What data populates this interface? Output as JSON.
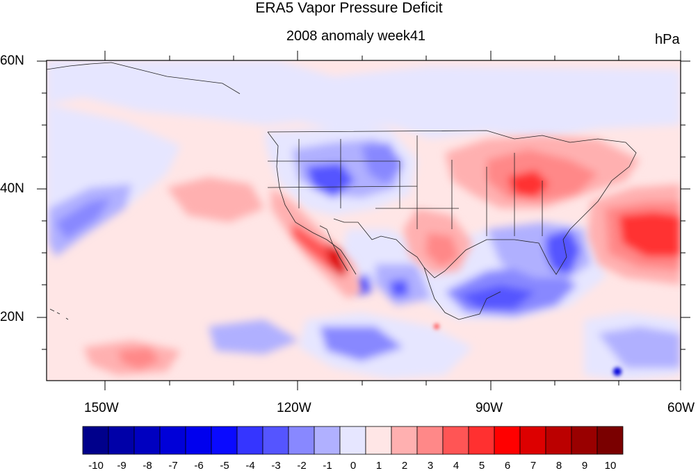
{
  "title": "ERA5 Vapor Pressure Deficit",
  "subtitle": "2008 anomaly week41",
  "units": "hPa",
  "lat_labels": [
    "60N",
    "40N",
    "20N"
  ],
  "lon_labels": [
    "150W",
    "120W",
    "90W",
    "60W"
  ],
  "colorbar": {
    "labels": [
      "-10",
      "-9",
      "-8",
      "-7",
      "-6",
      "-5",
      "-4",
      "-3",
      "-2",
      "-1",
      "0",
      "1",
      "2",
      "3",
      "4",
      "5",
      "6",
      "7",
      "8",
      "9",
      "10"
    ],
    "colors": [
      "#00008b",
      "#0000a8",
      "#0000c0",
      "#0000d8",
      "#0000ee",
      "#0a0aff",
      "#3535ff",
      "#5555ff",
      "#8888ff",
      "#b0b0ff",
      "#e6e6ff",
      "#ffe6e6",
      "#ffb0b0",
      "#ff8888",
      "#ff5555",
      "#ff3030",
      "#ff0000",
      "#dd0000",
      "#bb0000",
      "#990000",
      "#7a0000"
    ]
  },
  "colors": {
    "background_positive": "#ffe6e6",
    "background_negative": "#e6e6ff"
  }
}
